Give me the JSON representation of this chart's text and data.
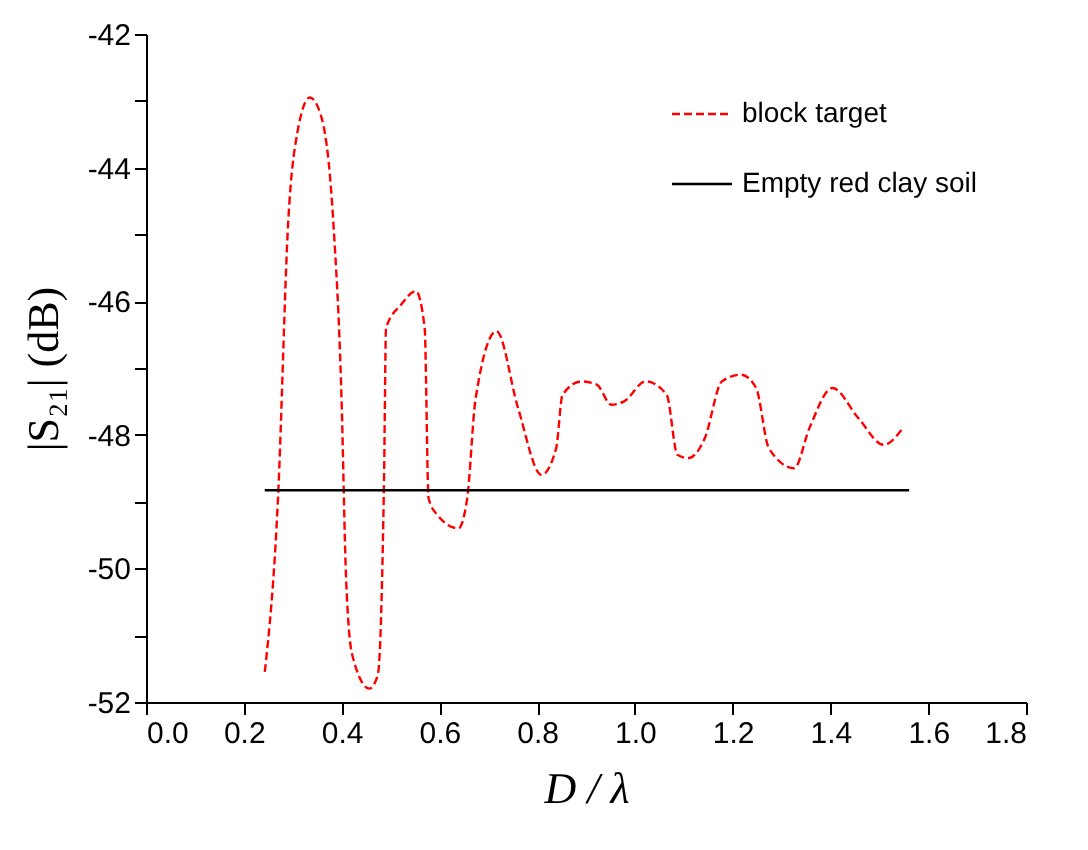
{
  "chart_data": {
    "type": "line",
    "xlabel": "D / λ",
    "ylabel": "|S₂₁| (dB)",
    "xlim": [
      0,
      1.8
    ],
    "xticks": [
      {
        "value": 0,
        "label": "0.0"
      },
      0.2,
      0.4,
      0.6,
      0.8,
      {
        "value": 1,
        "label": "1.0"
      },
      1.2,
      1.4,
      1.6,
      1.8
    ],
    "ylim": [
      -52,
      -42
    ],
    "yticks": [
      -52,
      {
        "value": -51,
        "label": null
      },
      -50,
      {
        "value": -49,
        "label": null
      },
      -48,
      {
        "value": -47,
        "label": null
      },
      -46,
      {
        "value": -45,
        "label": null
      },
      -44,
      {
        "value": -43,
        "label": null
      },
      -42
    ],
    "grid": false,
    "legend": "top right",
    "marker": "none",
    "series": [
      {
        "name": "block target",
        "color": "#ff0000",
        "line_style": "dashed",
        "x": [
          0.243,
          0.27,
          0.291,
          0.309,
          0.335,
          0.357,
          0.383,
          0.4,
          0.409,
          0.422,
          0.457,
          0.474,
          0.487,
          0.491,
          0.522,
          0.552,
          0.57,
          0.578,
          0.596,
          0.639,
          0.657,
          0.674,
          0.717,
          0.761,
          0.809,
          0.839,
          0.852,
          0.891,
          0.922,
          0.952,
          0.978,
          1.022,
          1.065,
          1.087,
          1.109,
          1.143,
          1.178,
          1.217,
          1.248,
          1.274,
          1.326,
          1.357,
          1.404,
          1.457,
          1.509,
          1.548
        ],
        "values": [
          -51.55,
          -48.95,
          -44.8,
          -43.5,
          -42.95,
          -43.2,
          -44.8,
          -47.47,
          -50.1,
          -51.3,
          -51.8,
          -51.6,
          -48.6,
          -46.4,
          -46.05,
          -45.85,
          -46.4,
          -48.95,
          -49.2,
          -49.4,
          -48.95,
          -47.47,
          -46.45,
          -47.6,
          -48.6,
          -48.2,
          -47.4,
          -47.2,
          -47.25,
          -47.55,
          -47.5,
          -47.2,
          -47.4,
          -48.3,
          -48.35,
          -48.05,
          -47.2,
          -47.1,
          -47.3,
          -48.2,
          -48.5,
          -47.9,
          -47.3,
          -47.75,
          -48.15,
          -47.9
        ]
      },
      {
        "name": "Empty red clay soil",
        "color": "#000000",
        "line_style": "solid",
        "x": [
          0.243,
          1.561
        ],
        "values": [
          -48.83,
          -48.83
        ]
      }
    ]
  }
}
